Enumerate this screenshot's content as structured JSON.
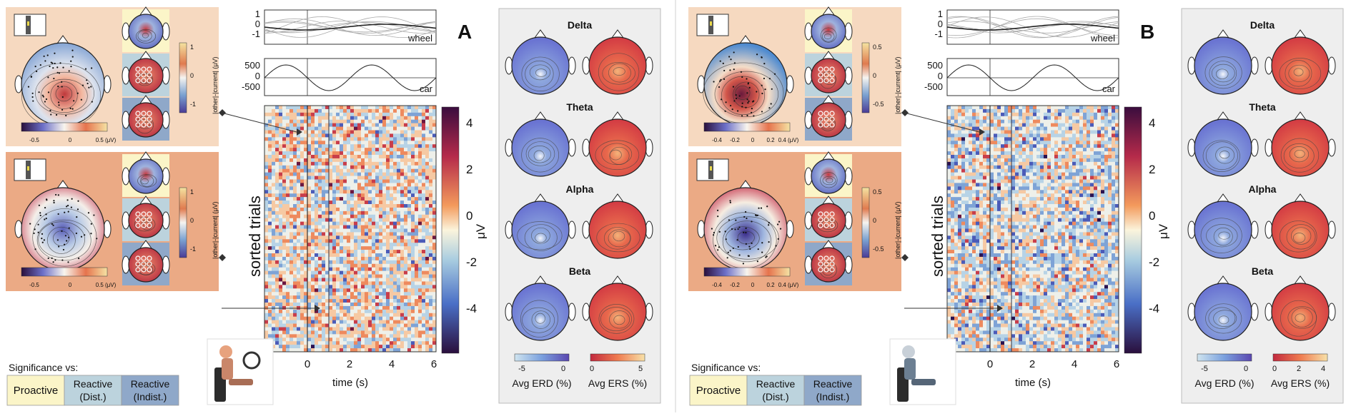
{
  "panels": [
    {
      "letter": "A",
      "topo_top_cb_ticks": [
        "1",
        "0",
        "-1"
      ],
      "topo_bottom_cb_ticks": [
        "1",
        "0",
        "-1"
      ],
      "small_cb_ticks": [
        "-0.5",
        "0",
        "0.5 (μV)"
      ],
      "hm_cb_ticks": [
        "4",
        "2",
        "0",
        "-2",
        "-4"
      ],
      "time_ticks": [
        "0",
        "2",
        "4",
        "6"
      ],
      "erd_ticks": [
        "-5",
        "0"
      ],
      "ers_ticks": [
        "0",
        "5"
      ],
      "user_top_color": "#f6d9c0",
      "user_bottom_color": "#ebaa85"
    },
    {
      "letter": "B",
      "topo_top_cb_ticks": [
        "0.5",
        "0",
        "-0.5"
      ],
      "topo_bottom_cb_ticks": [
        "0.5",
        "0",
        "-0.5"
      ],
      "small_cb_ticks": [
        "-0.4",
        "-0.2",
        "0",
        "0.2",
        "0.4 (μV)"
      ],
      "hm_cb_ticks": [
        "4",
        "2",
        "0",
        "-2",
        "-4"
      ],
      "time_ticks": [
        "0",
        "2",
        "4",
        "6"
      ],
      "erd_ticks": [
        "-5",
        "0"
      ],
      "ers_ticks": [
        "0",
        "2",
        "4"
      ],
      "user_top_color": "#f6d9c0",
      "user_bottom_color": "#ebaa85"
    }
  ],
  "labels": {
    "cb_label": "|other|-|current| (μV)",
    "wheel": "wheel",
    "car": "car",
    "wheel_ticks": [
      "1",
      "0",
      "-1"
    ],
    "car_ticks": [
      "500",
      "0",
      "-500"
    ],
    "sorted_trials": "sorted trials",
    "time_axis": "time (s)",
    "uv": "μV",
    "bands": [
      "Delta",
      "Theta",
      "Alpha",
      "Beta"
    ],
    "avg_erd": "Avg ERD (%)",
    "avg_ers": "Avg ERS (%)",
    "significance_title": "Significance vs:",
    "sig_boxes": [
      {
        "l1": "Proactive",
        "l2": ""
      },
      {
        "l1": "Reactive",
        "l2": "(Dist.)"
      },
      {
        "l1": "Reactive",
        "l2": "(Indist.)"
      }
    ]
  },
  "colors": {
    "proactive": "#fbf5c8",
    "reactive_dist": "#bcd3dd",
    "reactive_indist": "#8fa8c9",
    "band_panel": "#eeeeee"
  }
}
